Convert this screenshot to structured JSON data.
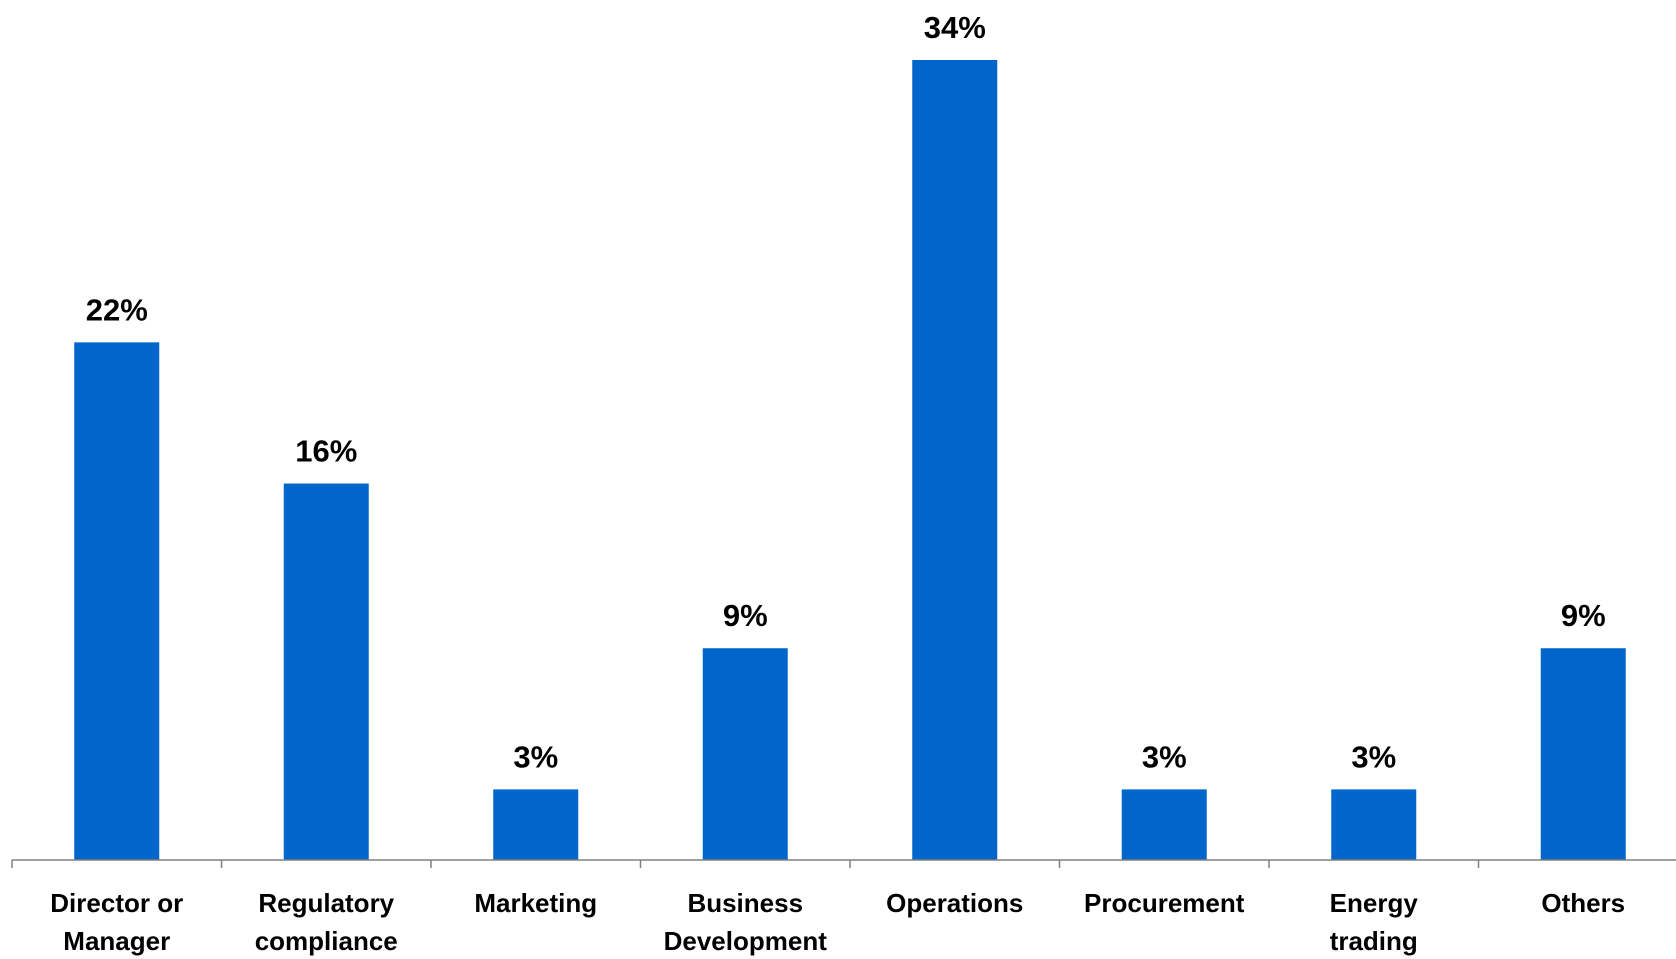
{
  "chart_data": {
    "type": "bar",
    "categories": [
      [
        "Director or",
        "Manager"
      ],
      [
        "Regulatory",
        "compliance"
      ],
      [
        "Marketing"
      ],
      [
        "Business",
        "Development"
      ],
      [
        "Operations"
      ],
      [
        "Procurement"
      ],
      [
        "Energy",
        "trading"
      ],
      [
        "Others"
      ]
    ],
    "values": [
      22,
      16,
      3,
      9,
      34,
      3,
      3,
      9
    ],
    "value_labels": [
      "22%",
      "16%",
      "3%",
      "9%",
      "34%",
      "3%",
      "3%",
      "9%"
    ],
    "unit": "%",
    "title": "",
    "xlabel": "",
    "ylabel": "",
    "ylim": [
      0,
      34
    ],
    "grid": false,
    "legend": "none",
    "bar_color": "#0066CC",
    "axis_color": "#808080"
  }
}
